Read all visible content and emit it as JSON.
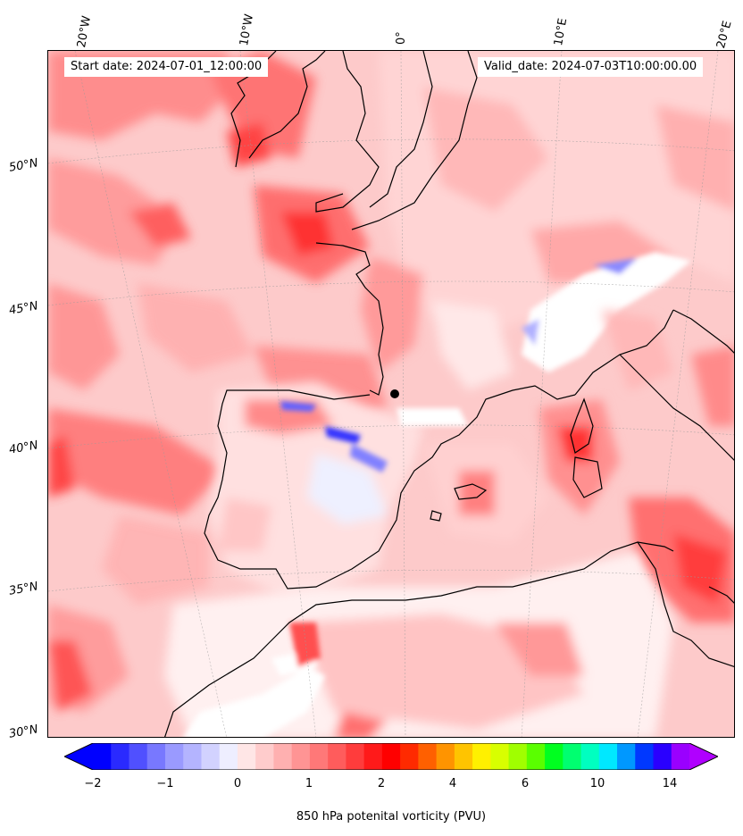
{
  "axes": {
    "longitudes": [
      "20°W",
      "10°W",
      "0°",
      "10°E",
      "20°E"
    ],
    "latitudes": [
      "50°N",
      "45°N",
      "40°N",
      "35°N",
      "30°N"
    ]
  },
  "info": {
    "start_date": "Start date: 2024-07-01_12:00:00",
    "valid_date": "Valid_date: 2024-07-03T10:00:00.00"
  },
  "colorbar": {
    "ticks": [
      "−2",
      "−1",
      "0",
      "1",
      "2",
      "4",
      "6",
      "10",
      "14"
    ],
    "label": "850 hPa potenital vorticity (PVU)",
    "colors": [
      "#0000ff",
      "#2a2aff",
      "#5050ff",
      "#7878ff",
      "#9a9aff",
      "#b4b4ff",
      "#d2d2ff",
      "#eeeeff",
      "#ffe6e6",
      "#ffcccc",
      "#ffb0b0",
      "#ff9494",
      "#ff7878",
      "#ff5c5c",
      "#ff3c3c",
      "#ff1a1a",
      "#ff0000",
      "#ff2a00",
      "#ff6000",
      "#ff9400",
      "#ffc400",
      "#fff000",
      "#d8ff00",
      "#a0ff00",
      "#5aff00",
      "#00ff20",
      "#00ff70",
      "#00ffc0",
      "#00e8ff",
      "#0098ff",
      "#0038ff",
      "#2a00ff",
      "#9a00ff"
    ],
    "under_color": "#0000ff",
    "over_color": "#b000ff"
  }
}
